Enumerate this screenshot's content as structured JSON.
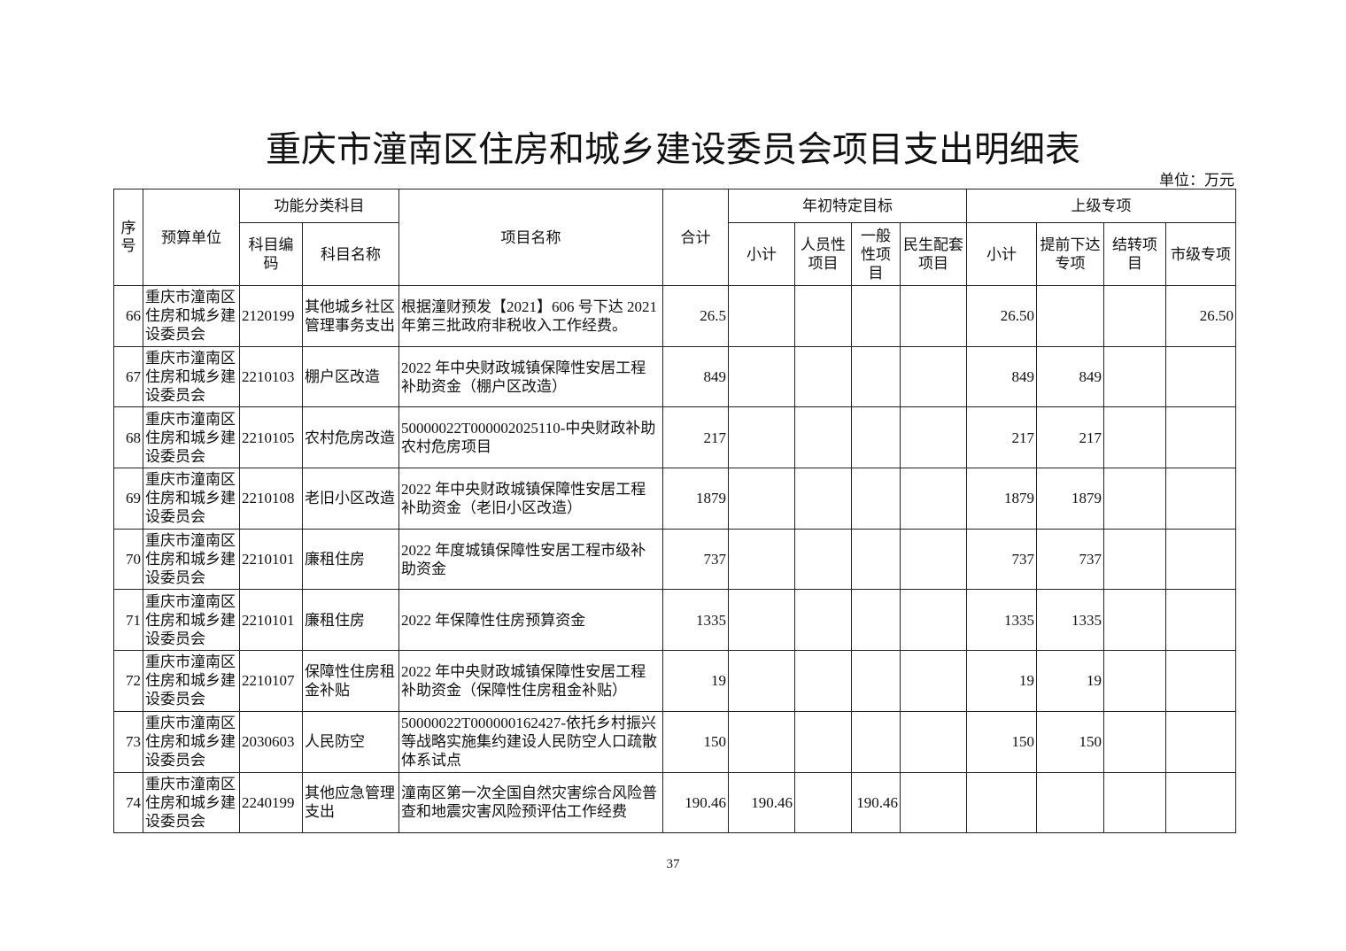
{
  "title": "重庆市潼南区住房和城乡建设委员会项目支出明细表",
  "unit_label": "单位：万元",
  "headers": {
    "seq": "序号",
    "unit": "预算单位",
    "func_group": "功能分类科目",
    "code": "科目编码",
    "subject": "科目名称",
    "project": "项目名称",
    "total": "合计",
    "target_group": "年初特定目标",
    "target_subtotal": "小计",
    "personnel": "人员性项目",
    "general": "一般性项目",
    "livelihood": "民生配套项目",
    "upper_group": "上级专项",
    "upper_subtotal": "小计",
    "advance": "提前下达专项",
    "carryover": "结转项目",
    "city": "市级专项"
  },
  "rows": [
    {
      "seq": "66",
      "unit": "重庆市潼南区住房和城乡建设委员会",
      "code": "2120199",
      "subject": "其他城乡社区管理事务支出",
      "project": "根据潼财预发【2021】606 号下达 2021 年第三批政府非税收入工作经费。",
      "total": "26.5",
      "target_subtotal": "",
      "personnel": "",
      "general": "",
      "livelihood": "",
      "upper_subtotal": "26.50",
      "advance": "",
      "carryover": "",
      "city": "26.50"
    },
    {
      "seq": "67",
      "unit": "重庆市潼南区住房和城乡建设委员会",
      "code": "2210103",
      "subject": "棚户区改造",
      "project": "2022 年中央财政城镇保障性安居工程补助资金（棚户区改造）",
      "total": "849",
      "target_subtotal": "",
      "personnel": "",
      "general": "",
      "livelihood": "",
      "upper_subtotal": "849",
      "advance": "849",
      "carryover": "",
      "city": ""
    },
    {
      "seq": "68",
      "unit": "重庆市潼南区住房和城乡建设委员会",
      "code": "2210105",
      "subject": "农村危房改造",
      "project": "50000022T000002025110-中央财政补助农村危房项目",
      "total": "217",
      "target_subtotal": "",
      "personnel": "",
      "general": "",
      "livelihood": "",
      "upper_subtotal": "217",
      "advance": "217",
      "carryover": "",
      "city": ""
    },
    {
      "seq": "69",
      "unit": "重庆市潼南区住房和城乡建设委员会",
      "code": "2210108",
      "subject": "老旧小区改造",
      "project": "2022 年中央财政城镇保障性安居工程补助资金（老旧小区改造）",
      "total": "1879",
      "target_subtotal": "",
      "personnel": "",
      "general": "",
      "livelihood": "",
      "upper_subtotal": "1879",
      "advance": "1879",
      "carryover": "",
      "city": ""
    },
    {
      "seq": "70",
      "unit": "重庆市潼南区住房和城乡建设委员会",
      "code": "2210101",
      "subject": "廉租住房",
      "project": "2022 年度城镇保障性安居工程市级补助资金",
      "total": "737",
      "target_subtotal": "",
      "personnel": "",
      "general": "",
      "livelihood": "",
      "upper_subtotal": "737",
      "advance": "737",
      "carryover": "",
      "city": ""
    },
    {
      "seq": "71",
      "unit": "重庆市潼南区住房和城乡建设委员会",
      "code": "2210101",
      "subject": "廉租住房",
      "project": "2022 年保障性住房预算资金",
      "total": "1335",
      "target_subtotal": "",
      "personnel": "",
      "general": "",
      "livelihood": "",
      "upper_subtotal": "1335",
      "advance": "1335",
      "carryover": "",
      "city": ""
    },
    {
      "seq": "72",
      "unit": "重庆市潼南区住房和城乡建设委员会",
      "code": "2210107",
      "subject": "保障性住房租金补贴",
      "project": "2022 年中央财政城镇保障性安居工程补助资金（保障性住房租金补贴）",
      "total": "19",
      "target_subtotal": "",
      "personnel": "",
      "general": "",
      "livelihood": "",
      "upper_subtotal": "19",
      "advance": "19",
      "carryover": "",
      "city": ""
    },
    {
      "seq": "73",
      "unit": "重庆市潼南区住房和城乡建设委员会",
      "code": "2030603",
      "subject": "人民防空",
      "project": "50000022T000000162427-依托乡村振兴等战略实施集约建设人民防空人口疏散体系试点",
      "total": "150",
      "target_subtotal": "",
      "personnel": "",
      "general": "",
      "livelihood": "",
      "upper_subtotal": "150",
      "advance": "150",
      "carryover": "",
      "city": ""
    },
    {
      "seq": "74",
      "unit": "重庆市潼南区住房和城乡建设委员会",
      "code": "2240199",
      "subject": "其他应急管理支出",
      "project": "潼南区第一次全国自然灾害综合风险普查和地震灾害风险预评估工作经费",
      "total": "190.46",
      "target_subtotal": "190.46",
      "personnel": "",
      "general": "190.46",
      "livelihood": "",
      "upper_subtotal": "",
      "advance": "",
      "carryover": "",
      "city": ""
    }
  ],
  "page_number": "37"
}
